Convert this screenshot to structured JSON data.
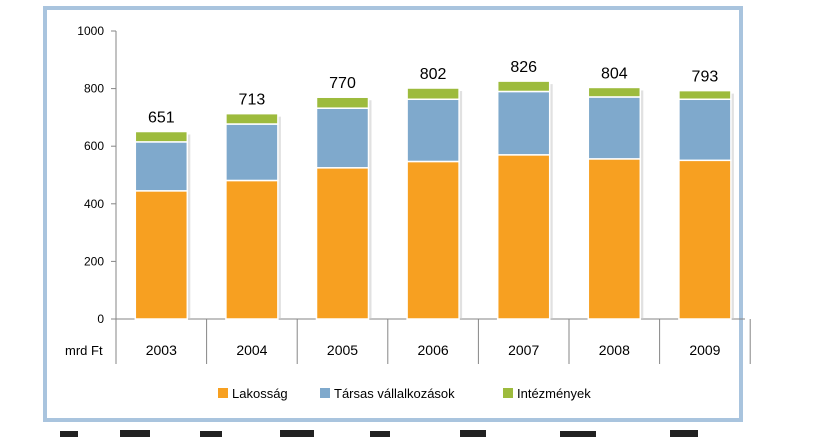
{
  "colors": {
    "frame": "#a9c4de",
    "lakossag": "#f7a021",
    "tarsas": "#7fa9cc",
    "intezmenyek": "#9dbb3d",
    "axis": "#868686",
    "grid": "#d9d9d9"
  },
  "chart_data": {
    "type": "bar",
    "stacked": true,
    "categories": [
      "2003",
      "2004",
      "2005",
      "2006",
      "2007",
      "2008",
      "2009"
    ],
    "series": [
      {
        "name": "Lakosság",
        "values": [
          445,
          481,
          525,
          547,
          570,
          556,
          551
        ]
      },
      {
        "name": "Társas vállalkozások",
        "values": [
          170,
          196,
          207,
          216,
          220,
          215,
          212
        ]
      },
      {
        "name": "Intézmények",
        "values": [
          36,
          36,
          38,
          39,
          36,
          33,
          30
        ]
      }
    ],
    "totals": [
      651,
      713,
      770,
      802,
      826,
      804,
      793
    ],
    "ylim": [
      0,
      1000
    ],
    "yticks": [
      0,
      200,
      400,
      600,
      800,
      1000
    ],
    "unit_label": "mrd Ft",
    "grid": false,
    "legend_position": "bottom"
  }
}
